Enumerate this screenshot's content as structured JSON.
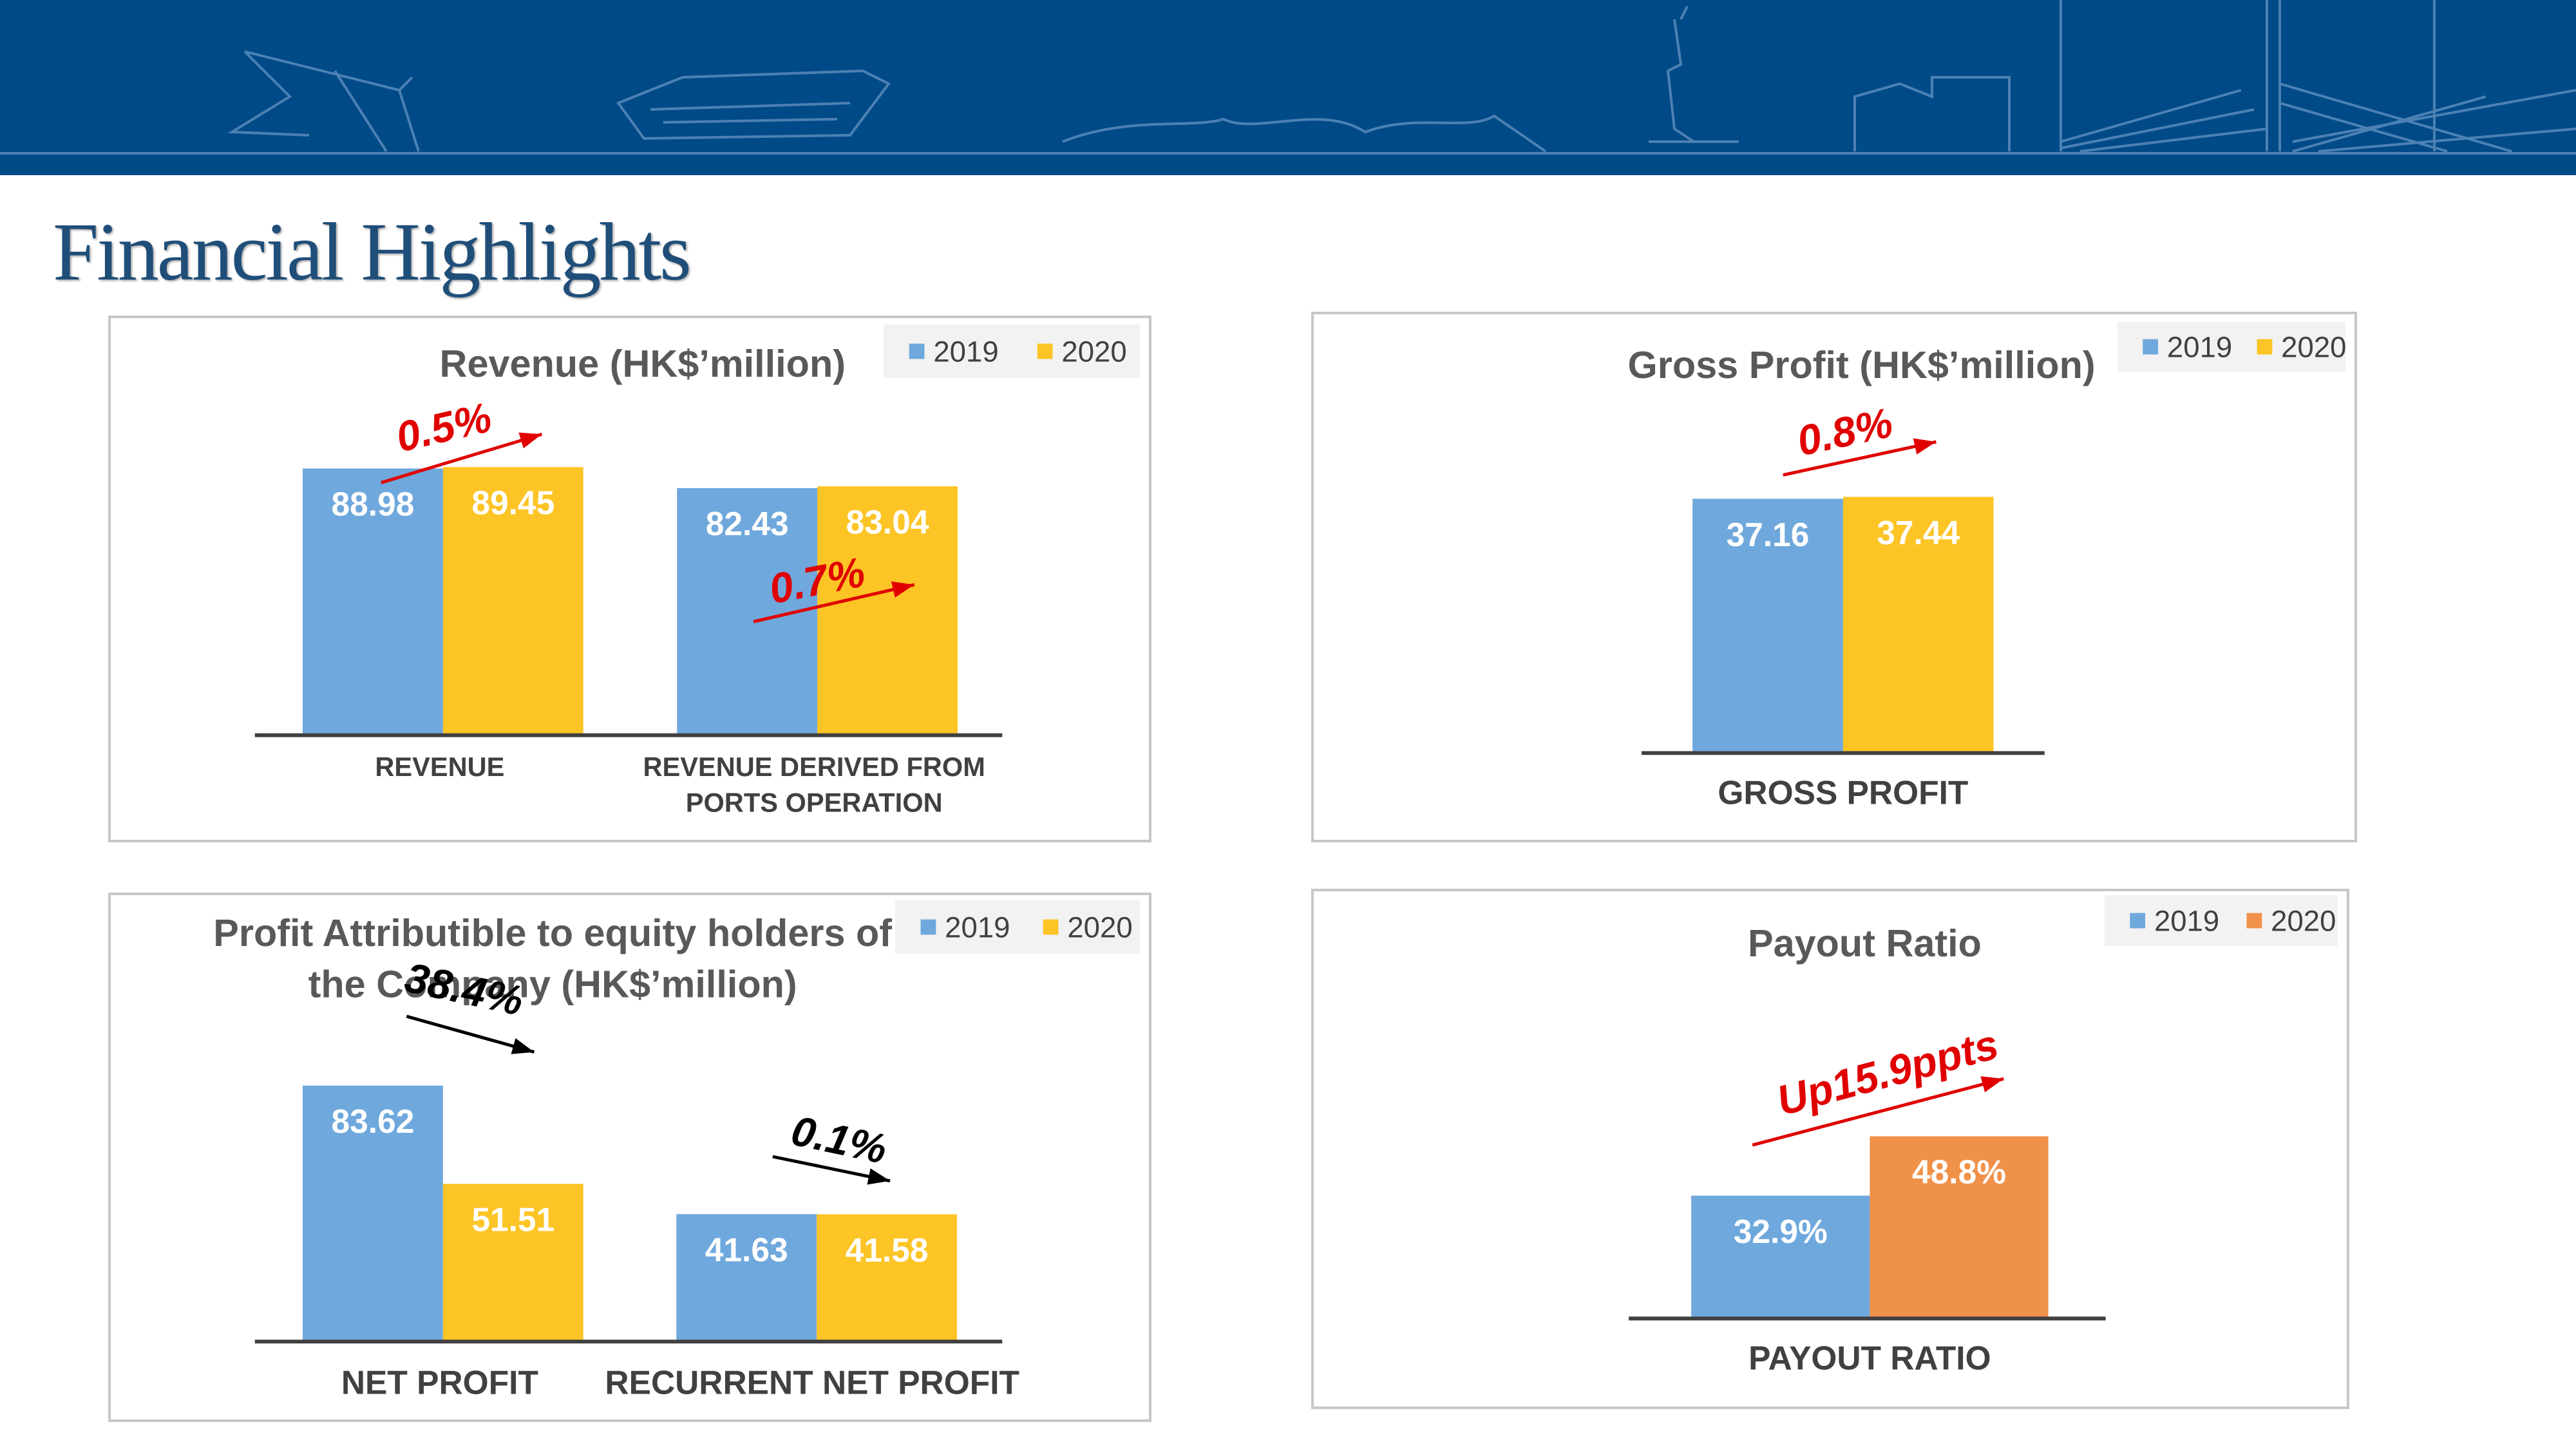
{
  "page": {
    "title": "Financial Highlights"
  },
  "colors": {
    "banner": "#004a87",
    "series_2019": "#6fa8dc",
    "series_2020": "#fcc425",
    "payout_2020": "#f0914a",
    "up_arrow": "#e00000",
    "down_arrow": "#000000"
  },
  "chart_data": [
    {
      "id": "revenue",
      "type": "bar",
      "title": "Revenue (HK$’million)",
      "legend": [
        "2019",
        "2020"
      ],
      "legend_position": "top-right",
      "categories": [
        "REVENUE",
        "REVENUE DERIVED FROM PORTS OPERATION"
      ],
      "category_lines": [
        [
          "REVENUE"
        ],
        [
          "REVENUE DERIVED FROM",
          "PORTS OPERATION"
        ]
      ],
      "series": [
        {
          "name": "2019",
          "values": [
            88.98,
            82.43
          ],
          "labels": [
            "88.98",
            "82.43"
          ]
        },
        {
          "name": "2020",
          "values": [
            89.45,
            83.04
          ],
          "labels": [
            "89.45",
            "83.04"
          ]
        }
      ],
      "annotations": [
        "0.5%",
        "0.7%"
      ],
      "ylim": [
        0,
        100
      ]
    },
    {
      "id": "gross-profit",
      "type": "bar",
      "title": "Gross Profit  (HK$’million)",
      "legend": [
        "2019",
        "2020"
      ],
      "legend_position": "top-right",
      "categories": [
        "GROSS PROFIT"
      ],
      "category_lines": [
        [
          "GROSS PROFIT"
        ]
      ],
      "series": [
        {
          "name": "2019",
          "values": [
            37.16
          ],
          "labels": [
            "37.16"
          ]
        },
        {
          "name": "2020",
          "values": [
            37.44
          ],
          "labels": [
            "37.44"
          ]
        }
      ],
      "annotations": [
        "0.8%"
      ],
      "ylim": [
        0,
        48
      ]
    },
    {
      "id": "profit-attributable",
      "type": "bar",
      "title": "Profit Attributible to equity holders of the Company (HK$’million)",
      "title_lines": [
        "Profit Attributible to equity holders of",
        "the Company (HK$’million)"
      ],
      "legend": [
        "2019",
        "2020"
      ],
      "legend_position": "top-right",
      "categories": [
        "NET PROFIT",
        "RECURRENT  NET PROFIT"
      ],
      "category_lines": [
        [
          "NET PROFIT"
        ],
        [
          "RECURRENT  NET PROFIT"
        ]
      ],
      "series": [
        {
          "name": "2019",
          "values": [
            83.62,
            41.63
          ],
          "labels": [
            "83.62",
            "41.63"
          ]
        },
        {
          "name": "2020",
          "values": [
            51.51,
            41.58
          ],
          "labels": [
            "51.51",
            "41.58"
          ]
        }
      ],
      "annotations": [
        "38.4%",
        "0.1%"
      ],
      "ylim": [
        0,
        100
      ]
    },
    {
      "id": "payout-ratio",
      "type": "bar",
      "title": "Payout Ratio",
      "legend": [
        "2019",
        "2020"
      ],
      "legend_position": "top-right",
      "categories": [
        "PAYOUT RATIO"
      ],
      "category_lines": [
        [
          "PAYOUT RATIO"
        ]
      ],
      "series": [
        {
          "name": "2019",
          "values": [
            32.9
          ],
          "labels": [
            "32.9%"
          ]
        },
        {
          "name": "2020",
          "values": [
            48.8
          ],
          "labels": [
            "48.8%"
          ]
        }
      ],
      "annotations": [
        "Up15.9ppts"
      ],
      "ylim": [
        0,
        76
      ]
    }
  ]
}
